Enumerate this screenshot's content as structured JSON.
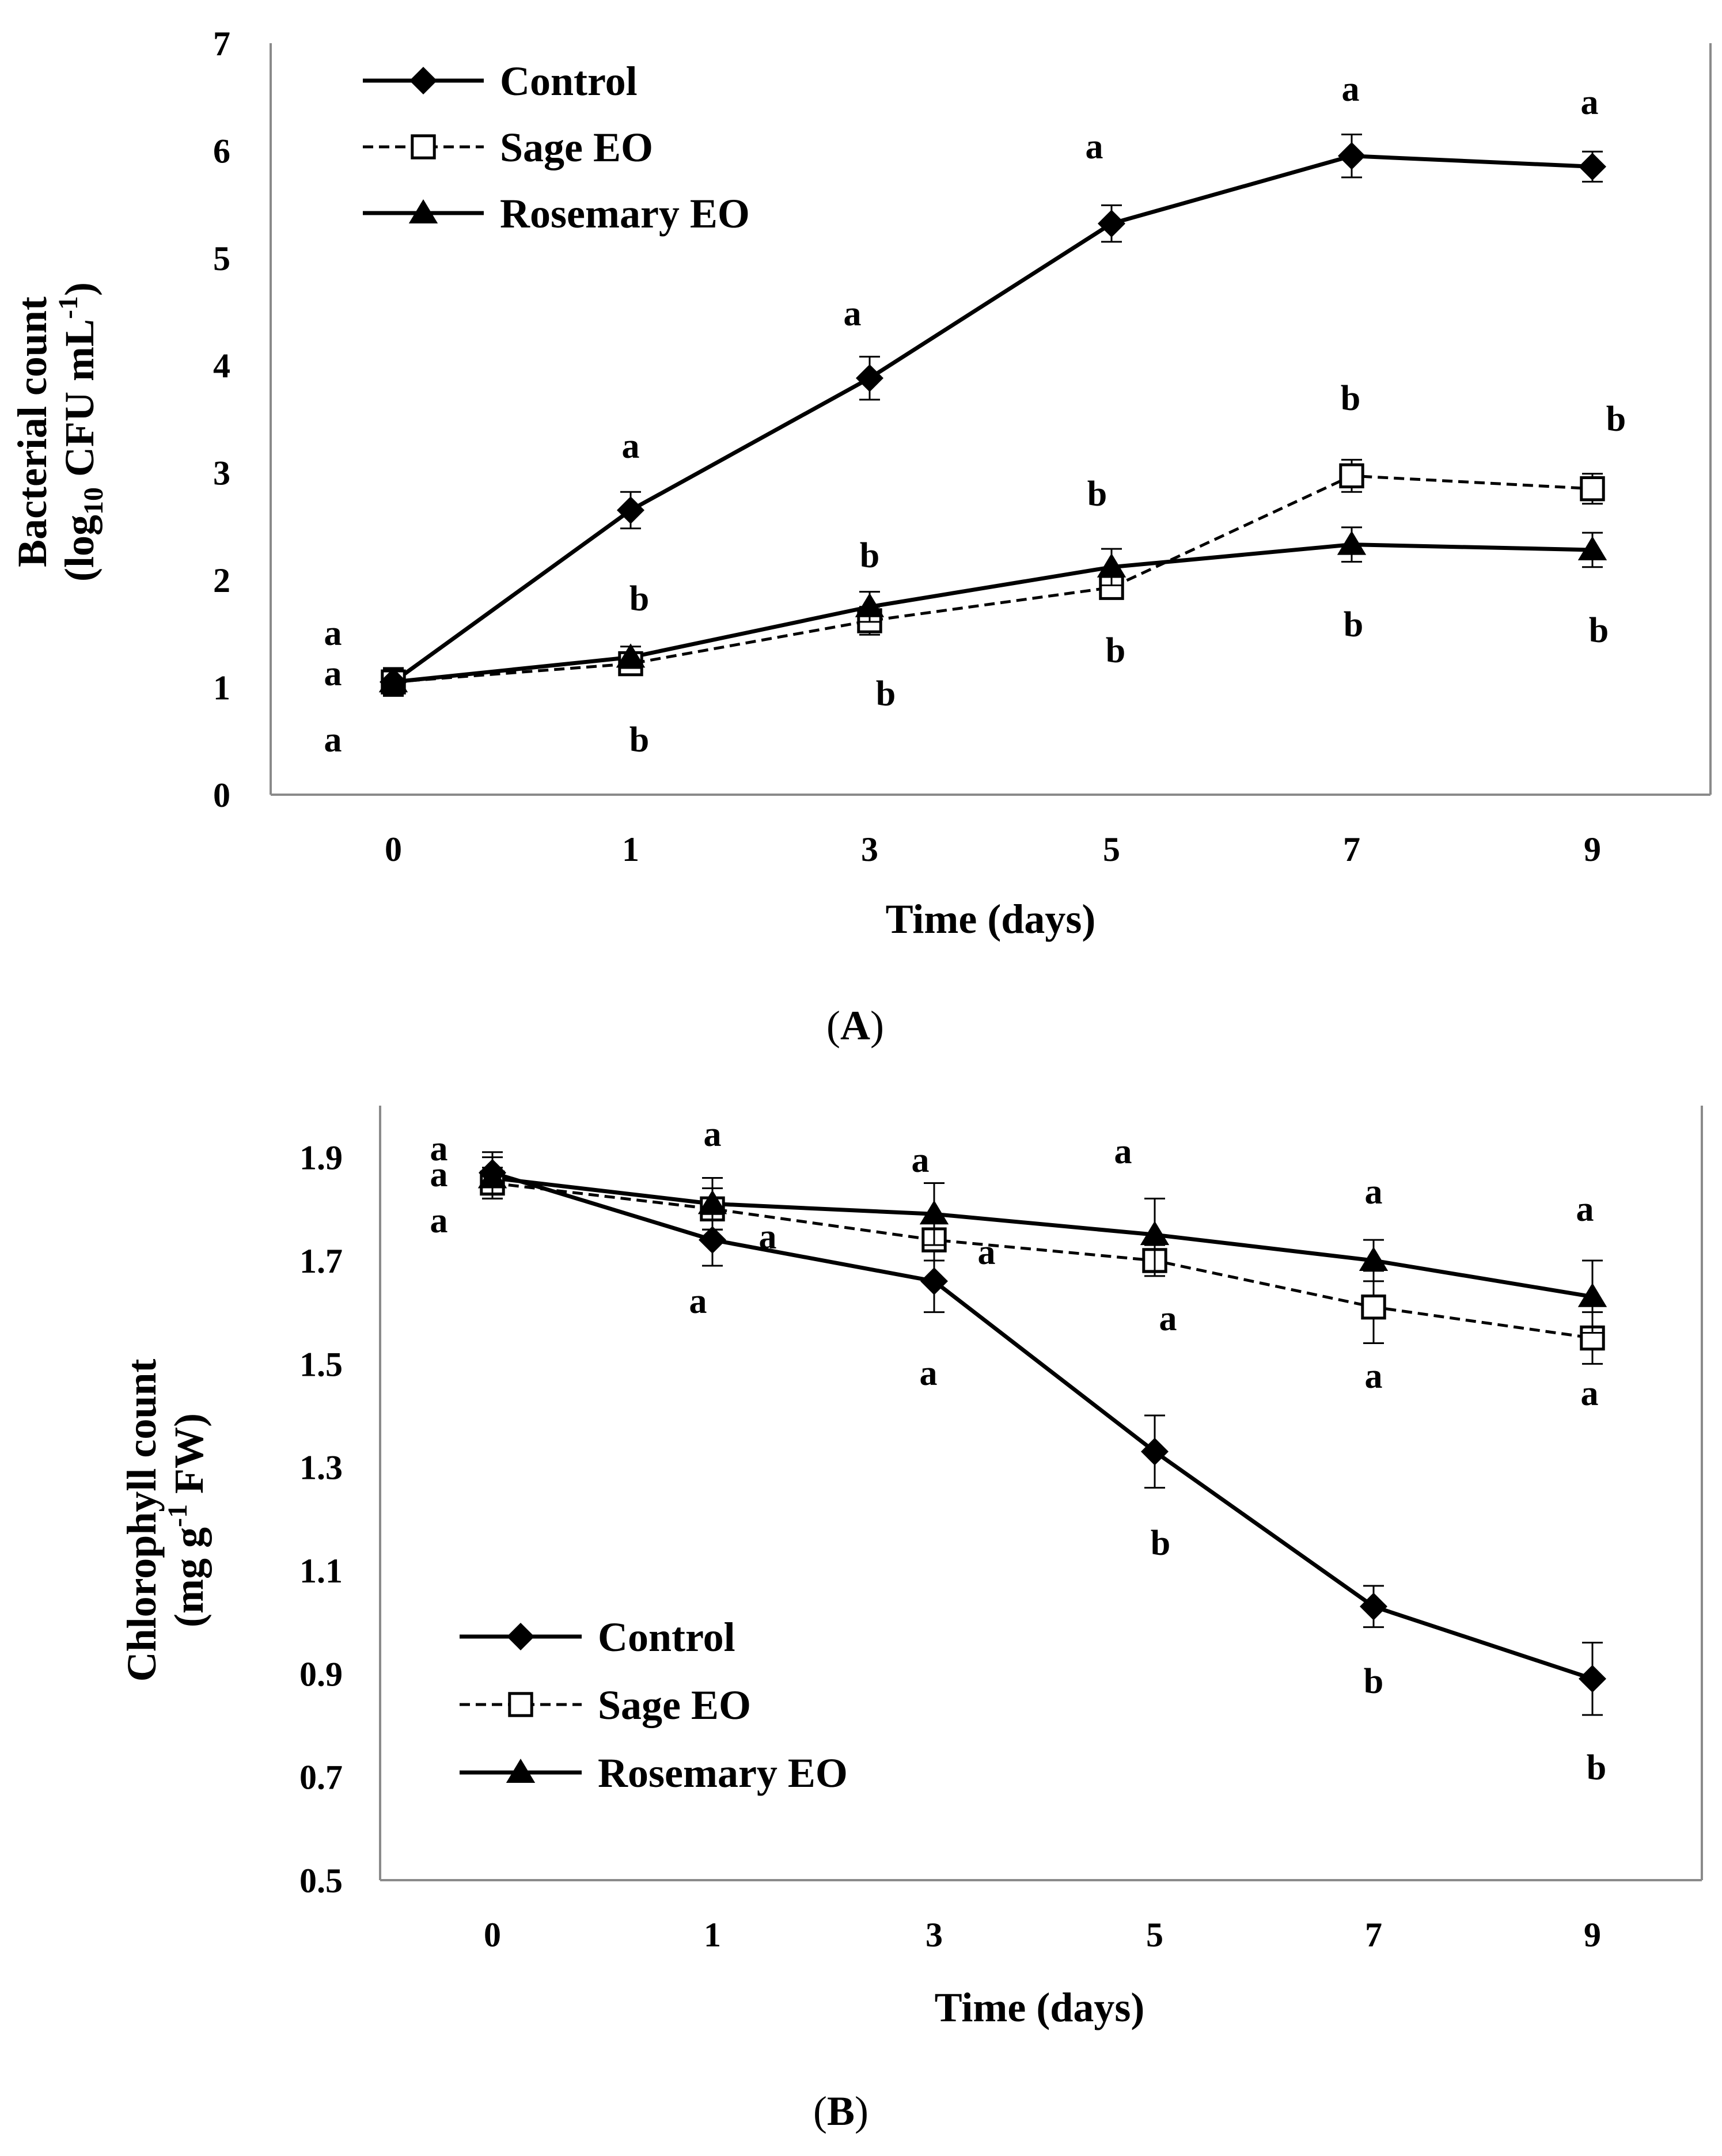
{
  "charts": [
    {
      "id": "A",
      "panel_label": {
        "pre": "(",
        "letter": "A",
        "post": ")"
      },
      "xlabel": "Time (days)",
      "ylabel_line1": "Bacterial count",
      "ylabel_line2": {
        "pre": "(log",
        "sub": "10",
        "mid": " CFU mL",
        "sup": "-1",
        "post": ")"
      },
      "legend_position": "top-left"
    },
    {
      "id": "B",
      "panel_label": {
        "pre": "(",
        "letter": "B",
        "post": ")"
      },
      "xlabel": "Time (days)",
      "ylabel_line1": "Chlorophyll count",
      "ylabel_line2": {
        "pre": "(mg g",
        "sup": "-1",
        "post": " FW)"
      },
      "legend_position": "bottom-left"
    }
  ],
  "chart_data": [
    {
      "type": "line",
      "x": [
        "0",
        "1",
        "3",
        "5",
        "7",
        "9"
      ],
      "ylim": [
        0,
        7
      ],
      "yticks": [
        "0",
        "1",
        "2",
        "3",
        "4",
        "5",
        "6",
        "7"
      ],
      "grid": false,
      "series": [
        {
          "name": "Control",
          "marker": "diamond",
          "dash": "solid",
          "values": [
            1.05,
            2.65,
            3.88,
            5.32,
            5.95,
            5.85
          ],
          "errors": [
            0.13,
            0.17,
            0.2,
            0.17,
            0.2,
            0.14
          ],
          "letters": [
            "a",
            "a",
            "a",
            "a",
            "a",
            "a"
          ]
        },
        {
          "name": "Sage EO",
          "marker": "open-square",
          "dash": "dashed",
          "values": [
            1.05,
            1.22,
            1.62,
            1.93,
            2.97,
            2.85
          ],
          "errors": [
            0.12,
            0.1,
            0.13,
            0.1,
            0.15,
            0.14
          ],
          "letters": [
            "a",
            "b",
            "b",
            "b",
            "b",
            "b"
          ]
        },
        {
          "name": "Rosemary EO",
          "marker": "triangle",
          "dash": "solid",
          "values": [
            1.05,
            1.28,
            1.75,
            2.12,
            2.33,
            2.28
          ],
          "errors": [
            0.12,
            0.1,
            0.14,
            0.17,
            0.16,
            0.16
          ],
          "letters": [
            "a",
            "b",
            "b",
            "b",
            "b",
            "b"
          ]
        }
      ]
    },
    {
      "type": "line",
      "x": [
        "0",
        "1",
        "3",
        "5",
        "7",
        "9"
      ],
      "ylim": [
        0.5,
        2.0
      ],
      "yticks": [
        "0.5",
        "0.7",
        "0.9",
        "1.1",
        "1.3",
        "1.5",
        "1.7",
        "1.9"
      ],
      "grid": false,
      "series": [
        {
          "name": "Control",
          "marker": "diamond",
          "dash": "solid",
          "values": [
            1.87,
            1.74,
            1.66,
            1.33,
            1.03,
            0.89
          ],
          "errors": [
            0.04,
            0.05,
            0.06,
            0.07,
            0.04,
            0.07
          ],
          "letters": [
            "a",
            "a",
            "a",
            "b",
            "b",
            "b"
          ]
        },
        {
          "name": "Sage EO",
          "marker": "open-square",
          "dash": "dashed",
          "values": [
            1.85,
            1.8,
            1.74,
            1.7,
            1.61,
            1.55
          ],
          "errors": [
            0.03,
            0.04,
            0.04,
            0.03,
            0.07,
            0.05
          ],
          "letters": [
            "a",
            "a",
            "a",
            "a",
            "a",
            "a"
          ]
        },
        {
          "name": "Rosemary EO",
          "marker": "triangle",
          "dash": "solid",
          "values": [
            1.86,
            1.81,
            1.79,
            1.75,
            1.7,
            1.63
          ],
          "errors": [
            0.04,
            0.05,
            0.06,
            0.07,
            0.04,
            0.07
          ],
          "letters": [
            "a",
            "a",
            "a",
            "a",
            "a",
            "a"
          ]
        }
      ]
    }
  ]
}
